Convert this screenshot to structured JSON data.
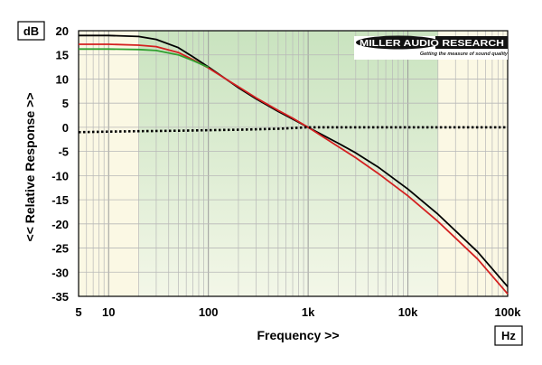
{
  "chart_data": {
    "type": "line",
    "title": "",
    "xlabel": "Frequency >>",
    "ylabel": "<< Relative Response >>",
    "x_unit": "Hz",
    "y_unit": "dB",
    "x_scale": "log",
    "xlim": [
      5,
      100000
    ],
    "ylim": [
      -35,
      20
    ],
    "x_ticks": [
      {
        "value": 5,
        "label": "5"
      },
      {
        "value": 10,
        "label": "10"
      },
      {
        "value": 100,
        "label": "100"
      },
      {
        "value": 1000,
        "label": "1k"
      },
      {
        "value": 10000,
        "label": "10k"
      },
      {
        "value": 100000,
        "label": "100k"
      }
    ],
    "y_ticks": [
      20,
      15,
      10,
      5,
      0,
      -5,
      -10,
      -15,
      -20,
      -25,
      -30,
      -35
    ],
    "grid": true,
    "shaded_band_hz": [
      20,
      20000
    ],
    "colors": {
      "plot_background": "#fbf8e4",
      "band": "#d9ecd0",
      "grid": "#b8b8b8"
    },
    "series": [
      {
        "color": "#000000",
        "style": "solid",
        "x": [
          5,
          10,
          20,
          30,
          50,
          70,
          100,
          150,
          200,
          300,
          500,
          700,
          1000,
          2000,
          3000,
          5000,
          10000,
          20000,
          50000,
          100000
        ],
        "y": [
          19,
          19,
          18.8,
          18.2,
          16.5,
          14.6,
          12.5,
          10,
          8.2,
          5.9,
          3.3,
          1.7,
          0,
          -3.3,
          -5.3,
          -8.2,
          -12.8,
          -18,
          -25.8,
          -33
        ]
      },
      {
        "color": "#d42020",
        "style": "solid",
        "x": [
          5,
          10,
          20,
          30,
          50,
          70,
          100,
          150,
          200,
          300,
          500,
          700,
          1000,
          2000,
          3000,
          5000,
          10000,
          20000,
          50000,
          100000
        ],
        "y": [
          17.2,
          17.2,
          17,
          16.7,
          15.5,
          14,
          12.3,
          10,
          8.4,
          6.1,
          3.5,
          1.9,
          0,
          -4,
          -6.3,
          -9.5,
          -14.2,
          -19.5,
          -27.3,
          -34.5
        ]
      },
      {
        "color": "#2fa02f",
        "style": "solid",
        "x": [
          5,
          10,
          20,
          30,
          50,
          70,
          100
        ],
        "y": [
          16.2,
          16.2,
          16.1,
          15.9,
          15,
          13.8,
          12.4
        ]
      },
      {
        "color": "#000000",
        "style": "dotted",
        "x": [
          5,
          10,
          20,
          50,
          100,
          200,
          500,
          1000,
          2000,
          5000,
          10000,
          20000,
          50000,
          100000
        ],
        "y": [
          -1,
          -0.9,
          -0.8,
          -0.7,
          -0.6,
          -0.5,
          -0.3,
          0,
          0,
          0,
          0,
          0,
          0,
          0
        ]
      }
    ]
  },
  "logo": {
    "name": "MILLER AUDIO RESEARCH",
    "tagline": "Getting the measure of sound quality"
  }
}
